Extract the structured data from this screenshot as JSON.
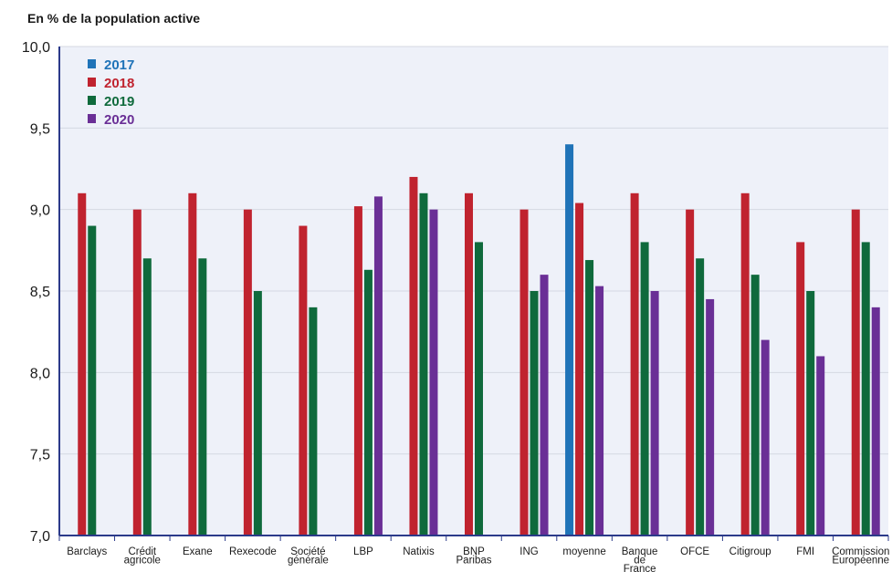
{
  "chart_data": {
    "type": "bar",
    "ylabel": "En % de la population active",
    "ylim": [
      7.0,
      10.0
    ],
    "yticks": [
      "7,0",
      "7,5",
      "8,0",
      "8,5",
      "9,0",
      "9,5",
      "10,0"
    ],
    "ytick_values": [
      7.0,
      7.5,
      8.0,
      8.5,
      9.0,
      9.5,
      10.0
    ],
    "grid": true,
    "legend_position": "top-left",
    "categories": [
      [
        "Barclays"
      ],
      [
        "Crédit",
        "agricole"
      ],
      [
        "Exane"
      ],
      [
        "Rexecode"
      ],
      [
        "Société",
        "générale"
      ],
      [
        "LBP"
      ],
      [
        "Natixis"
      ],
      [
        "BNP",
        "Paribas"
      ],
      [
        "ING"
      ],
      [
        "moyenne"
      ],
      [
        "Banque",
        "de",
        "France"
      ],
      [
        "OFCE"
      ],
      [
        "Citigroup"
      ],
      [
        "FMI"
      ],
      [
        "Commission",
        "Européenne"
      ]
    ],
    "series": [
      {
        "name": "2017",
        "color": "#1f73b8",
        "values": [
          null,
          null,
          null,
          null,
          null,
          null,
          null,
          null,
          null,
          9.4,
          null,
          null,
          null,
          null,
          null
        ]
      },
      {
        "name": "2018",
        "color": "#c0232f",
        "values": [
          9.1,
          9.0,
          9.1,
          9.0,
          8.9,
          9.02,
          9.2,
          9.1,
          9.0,
          9.04,
          9.1,
          9.0,
          9.1,
          8.8,
          9.0
        ]
      },
      {
        "name": "2019",
        "color": "#0f6a3c",
        "values": [
          8.9,
          8.7,
          8.7,
          8.5,
          8.4,
          8.63,
          9.1,
          8.8,
          8.5,
          8.69,
          8.8,
          8.7,
          8.6,
          8.5,
          8.8
        ]
      },
      {
        "name": "2020",
        "color": "#6a2f96",
        "values": [
          null,
          null,
          null,
          null,
          null,
          9.08,
          9.0,
          null,
          8.6,
          8.53,
          8.5,
          8.45,
          8.2,
          8.1,
          8.4
        ]
      }
    ]
  }
}
